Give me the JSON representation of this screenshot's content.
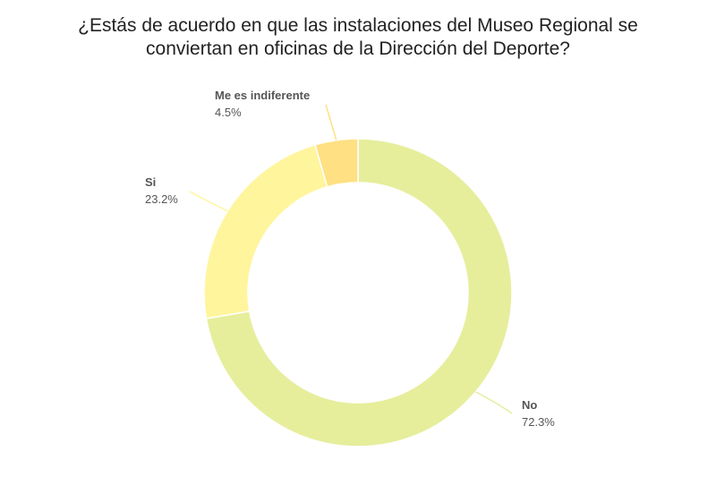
{
  "chart_data": {
    "type": "pie",
    "variant": "donut",
    "title_lines": [
      "¿Estás de acuerdo en que las instalaciones del Museo Regional se",
      "conviertan en oficinas de la Dirección del Deporte?"
    ],
    "slices": [
      {
        "label": "No",
        "value": 72.3,
        "value_label": "72.3%",
        "color": "#e6ee9c"
      },
      {
        "label": "Si",
        "value": 23.2,
        "value_label": "23.2%",
        "color": "#fff59d"
      },
      {
        "label": "Me es indiferente",
        "value": 4.5,
        "value_label": "4.5%",
        "color": "#ffe082"
      }
    ],
    "start_angle_deg": 0,
    "direction": "clockwise",
    "legend": "none"
  }
}
